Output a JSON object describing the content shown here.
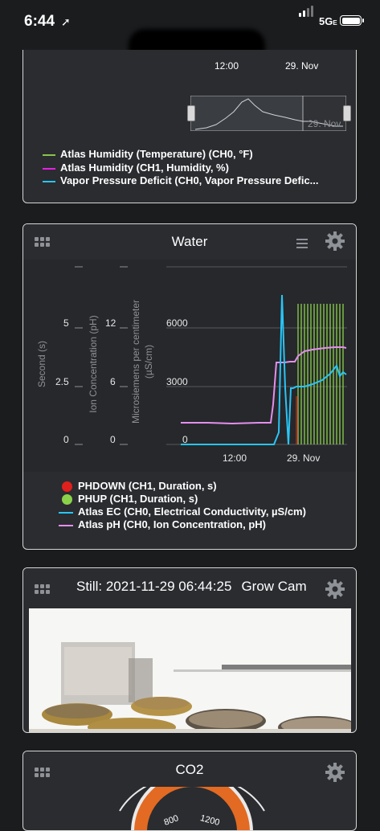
{
  "status_bar": {
    "time": "6:44",
    "location_glyph": "➚",
    "network": "5G",
    "network_suffix": "E"
  },
  "card_top": {
    "x_ticks": [
      "12:00",
      "29. Nov"
    ],
    "navigator_label": "29. Nov",
    "legend": [
      {
        "label": "Atlas Humidity (Temperature) (CH0, °F)",
        "color": "#8bc34a"
      },
      {
        "label": "Atlas Humidity (CH1, Humidity, %)",
        "color": "#e91ee3"
      },
      {
        "label": "Vapor Pressure Deficit (CH0, Vapor Pressure Defic...",
        "color": "#29c5f6"
      }
    ]
  },
  "card_water": {
    "title": "Water",
    "chart_data": {
      "type": "line",
      "x_ticks": [
        "12:00",
        "29. Nov"
      ],
      "axes": [
        {
          "label": "Second (s)",
          "ticks": [
            "0",
            "2.5",
            "5"
          ]
        },
        {
          "label": "Ion Concentration (pH)",
          "ticks": [
            "0",
            "6",
            "12"
          ]
        },
        {
          "label": "Microsiemens per centimeter (µS/cm)",
          "ticks": [
            "0",
            "3000",
            "6000"
          ]
        }
      ],
      "series": [
        {
          "name": "PHDOWN (CH1, Duration, s)",
          "color": "#e0201c"
        },
        {
          "name": "PHUP (CH1, Duration, s)",
          "color": "#8bd24a"
        },
        {
          "name": "Atlas EC (CH0, Electrical Conductivity, µS/cm)",
          "color": "#29c5f6"
        },
        {
          "name": "Atlas pH (CH0, Ion Concentration, pH)",
          "color": "#e58fee"
        }
      ]
    }
  },
  "card_camera": {
    "still_label": "Still: 2021-11-29 06:44:25",
    "camera_name": "Grow Cam"
  },
  "card_co2": {
    "title": "CO2",
    "gauge_ticks": [
      "800",
      "1200"
    ]
  }
}
